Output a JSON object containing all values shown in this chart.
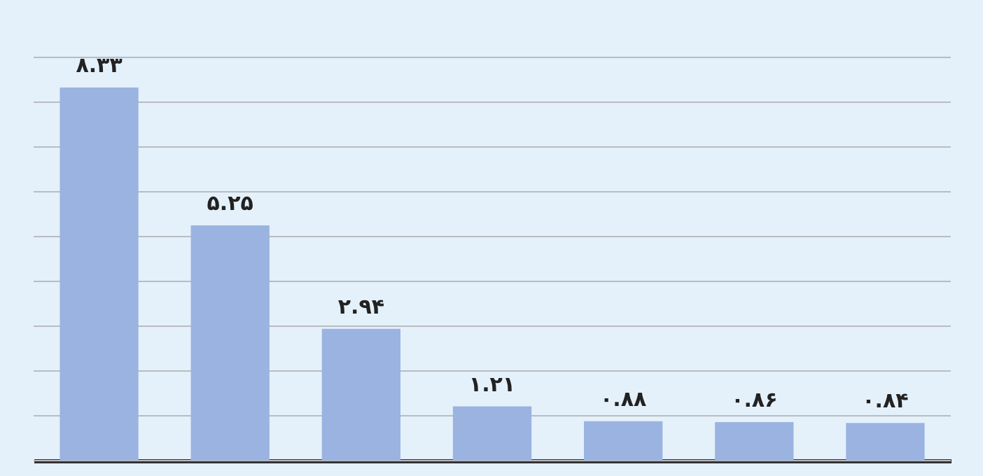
{
  "chart_data": {
    "type": "bar",
    "categories": [
      null,
      null,
      null,
      null,
      null,
      null,
      null
    ],
    "values": [
      8.33,
      5.25,
      2.94,
      1.21,
      0.88,
      0.86,
      0.84
    ],
    "value_labels": [
      "۸.۳۳",
      "۵.۲۵",
      "۲.۹۴",
      "۱.۲۱",
      "۰.۸۸",
      "۰.۸۶",
      "۰.۸۴"
    ],
    "color": "#9bb3e0",
    "ylim": [
      0,
      9
    ],
    "yticks": [
      {
        "value": 0,
        "label": null
      },
      {
        "value": 1,
        "label": null
      },
      {
        "value": 2,
        "label": null
      },
      {
        "value": 3,
        "label": null
      },
      {
        "value": 4,
        "label": null
      },
      {
        "value": 5,
        "label": null
      },
      {
        "value": 6,
        "label": null
      },
      {
        "value": 7,
        "label": null
      },
      {
        "value": 8,
        "label": null
      },
      {
        "value": 9,
        "label": null
      }
    ],
    "grid": "y"
  }
}
